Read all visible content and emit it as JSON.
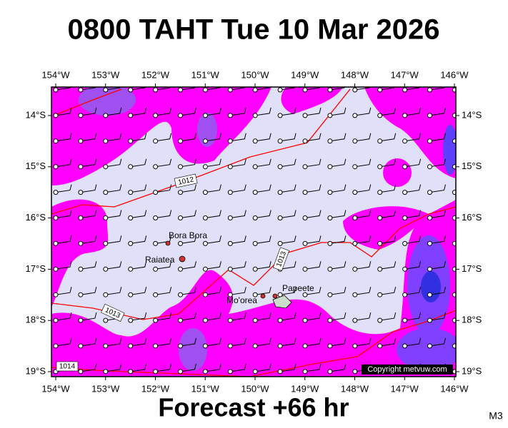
{
  "header": {
    "title": "0800 TAHT Tue 10 Mar 2026"
  },
  "map": {
    "lon_labels": [
      "154°W",
      "153°W",
      "152°W",
      "151°W",
      "150°W",
      "149°W",
      "148°W",
      "147°W",
      "146°W"
    ],
    "lat_labels": [
      "14°S",
      "15°S",
      "16°S",
      "17°S",
      "18°S",
      "19°S"
    ],
    "places": [
      "Bora Bora",
      "Raiatea",
      "Mo'orea",
      "Papeete"
    ],
    "isobar_labels": [
      "1012",
      "1013",
      "1013",
      "1014"
    ],
    "copyright": "Copyright metvuw.com"
  },
  "footer": {
    "forecast": "Forecast +66 hr",
    "model": "M3"
  }
}
